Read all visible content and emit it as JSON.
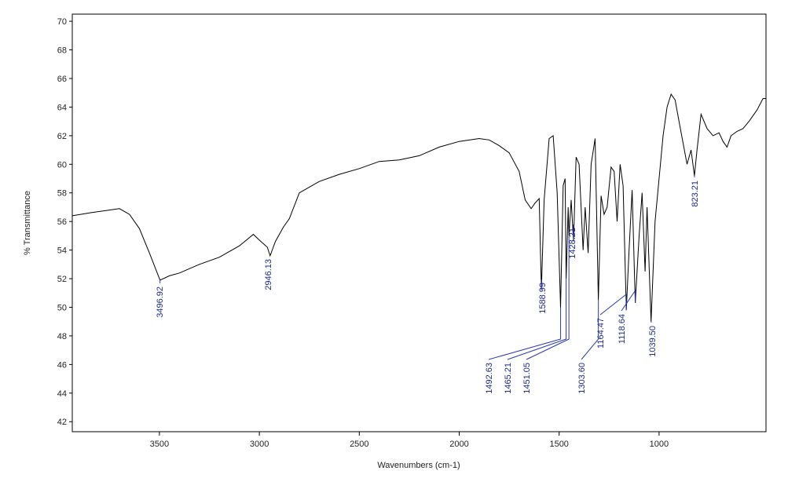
{
  "chart_data": {
    "type": "line",
    "xlabel": "Wavenumbers (cm-1)",
    "ylabel": "% Transmittance",
    "xlim": [
      3936,
      465
    ],
    "ylim": [
      41.3,
      70.5
    ],
    "xticks": [
      3500,
      3000,
      2500,
      2000,
      1500,
      1000
    ],
    "yticks": [
      42,
      44,
      46,
      48,
      50,
      52,
      54,
      56,
      58,
      60,
      62,
      64,
      66,
      68,
      70
    ],
    "color": "#000000",
    "x": [
      3936,
      3850,
      3800,
      3750,
      3700,
      3650,
      3600,
      3550,
      3497,
      3450,
      3400,
      3300,
      3200,
      3100,
      3030,
      3000,
      2960,
      2946,
      2920,
      2880,
      2850,
      2800,
      2700,
      2600,
      2500,
      2400,
      2300,
      2200,
      2100,
      2000,
      1900,
      1850,
      1800,
      1750,
      1700,
      1670,
      1640,
      1620,
      1600,
      1589,
      1575,
      1550,
      1530,
      1510,
      1493,
      1480,
      1470,
      1465,
      1455,
      1451,
      1440,
      1428,
      1415,
      1400,
      1380,
      1370,
      1355,
      1340,
      1320,
      1304,
      1290,
      1275,
      1260,
      1240,
      1225,
      1210,
      1195,
      1180,
      1164,
      1150,
      1135,
      1119,
      1100,
      1085,
      1070,
      1060,
      1040,
      1020,
      1000,
      980,
      960,
      940,
      920,
      900,
      880,
      860,
      840,
      823,
      810,
      790,
      760,
      730,
      700,
      680,
      660,
      640,
      610,
      580,
      550,
      510,
      480,
      465
    ],
    "y": [
      56.4,
      56.6,
      56.7,
      56.8,
      56.9,
      56.5,
      55.5,
      53.8,
      51.9,
      52.2,
      52.4,
      53.0,
      53.5,
      54.3,
      55.1,
      54.7,
      54.2,
      53.6,
      54.6,
      55.6,
      56.2,
      58.0,
      58.8,
      59.3,
      59.7,
      60.2,
      60.3,
      60.6,
      61.2,
      61.6,
      61.8,
      61.7,
      61.3,
      60.8,
      59.5,
      57.5,
      56.9,
      57.3,
      57.6,
      51.2,
      57.5,
      61.8,
      62.0,
      58.0,
      50.0,
      58.5,
      59.0,
      52.0,
      57.0,
      55.0,
      57.5,
      54.6,
      60.5,
      60.0,
      54.0,
      57.0,
      53.8,
      60.0,
      61.8,
      50.5,
      57.8,
      56.5,
      57.0,
      59.8,
      59.5,
      56.0,
      60.0,
      58.5,
      49.8,
      54.0,
      58.2,
      50.3,
      55.0,
      58.0,
      52.5,
      57.0,
      49.0,
      56.0,
      59.0,
      62.0,
      64.0,
      64.9,
      64.5,
      63.0,
      61.5,
      60.0,
      61.0,
      59.2,
      61.0,
      63.5,
      62.5,
      62.0,
      62.2,
      61.6,
      61.2,
      62.0,
      62.3,
      62.5,
      63.0,
      63.8,
      64.6,
      64.6
    ],
    "peaks": [
      {
        "x": 3496.92,
        "y": 51.9,
        "label": "3496.92"
      },
      {
        "x": 2946.13,
        "y": 53.6,
        "label": "2946.13"
      },
      {
        "x": 1588.99,
        "y": 51.2,
        "label": "1588.99"
      },
      {
        "x": 1492.63,
        "y": 50.0,
        "label": "1492.63"
      },
      {
        "x": 1465.21,
        "y": 52.0,
        "label": "1465.21"
      },
      {
        "x": 1451.05,
        "y": 55.0,
        "label": "1451.05"
      },
      {
        "x": 1428.21,
        "y": 54.6,
        "label": "1428.21"
      },
      {
        "x": 1303.6,
        "y": 50.5,
        "label": "1303.60"
      },
      {
        "x": 1164.47,
        "y": 49.8,
        "label": "1164.47"
      },
      {
        "x": 1118.64,
        "y": 50.3,
        "label": "1118.64"
      },
      {
        "x": 1039.5,
        "y": 49.0,
        "label": "1039.50"
      },
      {
        "x": 823.21,
        "y": 59.2,
        "label": "823.21"
      }
    ]
  }
}
